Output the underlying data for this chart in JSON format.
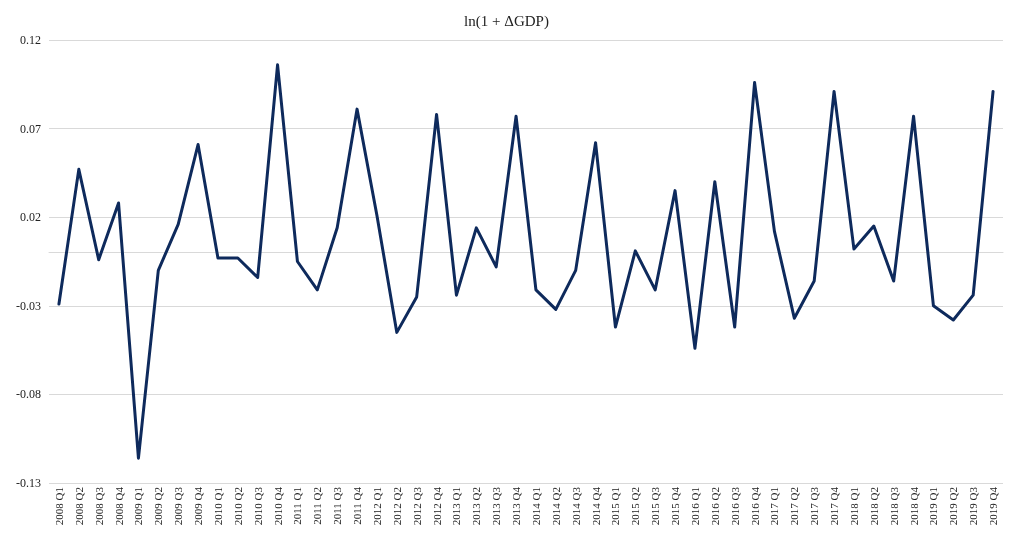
{
  "chart_data": {
    "type": "line",
    "title": "ln(1 + ΔGDP)",
    "categories": [
      "2008 Q1",
      "2008 Q2",
      "2008 Q3",
      "2008 Q4",
      "2009 Q1",
      "2009 Q2",
      "2009 Q3",
      "2009 Q4",
      "2010 Q1",
      "2010 Q2",
      "2010 Q3",
      "2010 Q4",
      "2011 Q1",
      "2011 Q2",
      "2011 Q3",
      "2011 Q4",
      "2012 Q1",
      "2012 Q2",
      "2012 Q3",
      "2012 Q4",
      "2013 Q1",
      "2013 Q2",
      "2013 Q3",
      "2013 Q4",
      "2014 Q1",
      "2014 Q2",
      "2014 Q3",
      "2014 Q4",
      "2015 Q1",
      "2015 Q2",
      "2015 Q3",
      "2015 Q4",
      "2016 Q1",
      "2016 Q2",
      "2016 Q3",
      "2016 Q4",
      "2017 Q1",
      "2017 Q2",
      "2017 Q3",
      "2017 Q4",
      "2018 Q1",
      "2018 Q2",
      "2018 Q3",
      "2018 Q4",
      "2019 Q1",
      "2019 Q2",
      "2019 Q3",
      "2019 Q4"
    ],
    "series": [
      {
        "color": "#0e2a5c",
        "values": [
          -0.029,
          0.047,
          -0.004,
          0.028,
          -0.116,
          -0.01,
          0.016,
          0.061,
          -0.003,
          -0.003,
          -0.014,
          0.106,
          -0.005,
          -0.021,
          0.014,
          0.081,
          0.021,
          -0.045,
          -0.025,
          0.078,
          -0.024,
          0.014,
          -0.008,
          0.077,
          -0.021,
          -0.032,
          -0.01,
          0.062,
          -0.042,
          0.001,
          -0.021,
          0.035,
          -0.054,
          0.04,
          -0.042,
          0.096,
          0.012,
          -0.037,
          -0.016,
          0.091,
          0.002,
          0.015,
          -0.016,
          0.077,
          -0.03,
          -0.038,
          -0.024,
          0.091
        ]
      }
    ],
    "ylim": [
      -0.13,
      0.12
    ],
    "yticks": [
      -0.13,
      -0.08,
      -0.03,
      0.02,
      0.07,
      0.12
    ],
    "grid": "y",
    "marker": "none",
    "line_style": "solid"
  }
}
